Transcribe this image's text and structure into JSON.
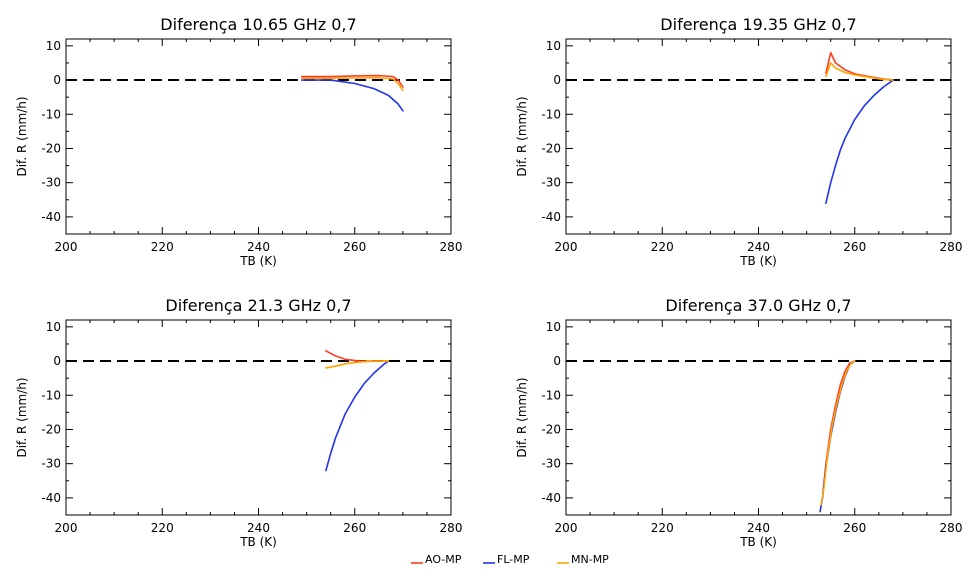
{
  "chart_data": [
    {
      "type": "line",
      "title": "Diferença 10.65 GHz   0,7",
      "xlabel": "TB (K)",
      "ylabel": "Dif. R (mm/h)",
      "xlim": [
        200,
        280
      ],
      "ylim": [
        -45,
        12
      ],
      "xticks": [
        200,
        220,
        240,
        260,
        280
      ],
      "yticks": [
        10,
        0,
        -10,
        -20,
        -30,
        -40
      ],
      "reference_line": {
        "y": 0,
        "style": "dashed"
      },
      "series": [
        {
          "name": "AO-MP",
          "color": "#ff3b1f",
          "x": [
            249,
            255,
            260,
            265,
            268,
            269,
            270
          ],
          "y": [
            1.0,
            1.0,
            1.2,
            1.3,
            1.0,
            0.0,
            -2.0
          ]
        },
        {
          "name": "FL-MP",
          "color": "#2233ee",
          "x": [
            249,
            255,
            260,
            264,
            267,
            269,
            270
          ],
          "y": [
            0.0,
            0.0,
            -1.0,
            -2.5,
            -4.5,
            -7.0,
            -9.0
          ]
        },
        {
          "name": "MN-MP",
          "color": "#ffa500",
          "x": [
            249,
            255,
            260,
            265,
            268,
            269,
            270
          ],
          "y": [
            0.5,
            0.5,
            0.6,
            0.7,
            0.3,
            -1.0,
            -3.0
          ]
        }
      ]
    },
    {
      "type": "line",
      "title": "Diferença 19.35 GHz   0,7",
      "xlabel": "TB (K)",
      "ylabel": "Dif. R (mm/h)",
      "xlim": [
        200,
        280
      ],
      "ylim": [
        -45,
        12
      ],
      "xticks": [
        200,
        220,
        240,
        260,
        280
      ],
      "yticks": [
        10,
        0,
        -10,
        -20,
        -30,
        -40
      ],
      "reference_line": {
        "y": 0,
        "style": "dashed"
      },
      "series": [
        {
          "name": "AO-MP",
          "color": "#ff3b1f",
          "x": [
            254,
            255,
            256,
            258,
            260,
            263,
            266,
            268
          ],
          "y": [
            2.0,
            8.0,
            5.0,
            3.0,
            1.8,
            1.0,
            0.3,
            0.0
          ]
        },
        {
          "name": "FL-MP",
          "color": "#2233ee",
          "x": [
            254,
            255,
            256,
            257,
            258,
            260,
            262,
            264,
            266,
            268
          ],
          "y": [
            -36.0,
            -30.0,
            -25.0,
            -20.5,
            -17.0,
            -11.5,
            -7.5,
            -4.5,
            -2.0,
            0.0
          ]
        },
        {
          "name": "MN-MP",
          "color": "#ffa500",
          "x": [
            254,
            255,
            256,
            258,
            260,
            263,
            266,
            268
          ],
          "y": [
            1.0,
            5.0,
            3.5,
            2.2,
            1.5,
            0.8,
            0.2,
            0.0
          ]
        }
      ]
    },
    {
      "type": "line",
      "title": "Diferença 21.3 GHz   0,7",
      "xlabel": "TB (K)",
      "ylabel": "Dif. R (mm/h)",
      "xlim": [
        200,
        280
      ],
      "ylim": [
        -45,
        12
      ],
      "xticks": [
        200,
        220,
        240,
        260,
        280
      ],
      "yticks": [
        10,
        0,
        -10,
        -20,
        -30,
        -40
      ],
      "reference_line": {
        "y": 0,
        "style": "dashed"
      },
      "series": [
        {
          "name": "AO-MP",
          "color": "#ff3b1f",
          "x": [
            254,
            256,
            258,
            261,
            264,
            267
          ],
          "y": [
            3.0,
            1.5,
            0.5,
            0.0,
            0.0,
            0.0
          ]
        },
        {
          "name": "FL-MP",
          "color": "#2233ee",
          "x": [
            254,
            255,
            256,
            257,
            258,
            260,
            262,
            264,
            266,
            267
          ],
          "y": [
            -32.0,
            -27.0,
            -22.5,
            -19.0,
            -15.5,
            -10.5,
            -6.5,
            -3.5,
            -1.0,
            0.0
          ]
        },
        {
          "name": "MN-MP",
          "color": "#ffa500",
          "x": [
            254,
            256,
            258,
            261,
            264,
            267
          ],
          "y": [
            -2.0,
            -1.5,
            -0.8,
            -0.3,
            0.0,
            0.0
          ]
        }
      ]
    },
    {
      "type": "line",
      "title": "Diferença 37.0 GHz   0,7",
      "xlabel": "TB (K)",
      "ylabel": "Dif. R (mm/h)",
      "xlim": [
        200,
        280
      ],
      "ylim": [
        -45,
        12
      ],
      "xticks": [
        200,
        220,
        240,
        260,
        280
      ],
      "yticks": [
        10,
        0,
        -10,
        -20,
        -30,
        -40
      ],
      "reference_line": {
        "y": 0,
        "style": "dashed"
      },
      "series": [
        {
          "name": "AO-MP",
          "color": "#ff3b1f",
          "x": [
            253.3,
            254,
            255,
            256,
            257,
            258,
            259,
            260
          ],
          "y": [
            -40.0,
            -30.0,
            -20.0,
            -13.0,
            -7.0,
            -3.0,
            -0.5,
            0.0
          ]
        },
        {
          "name": "FL-MP",
          "color": "#2233ee",
          "x": [
            252.8,
            253.3,
            254,
            255,
            256,
            257,
            258,
            259,
            260
          ],
          "y": [
            -44.0,
            -40.0,
            -31.0,
            -22.0,
            -15.0,
            -9.0,
            -4.5,
            -1.0,
            0.0
          ]
        },
        {
          "name": "MN-MP",
          "color": "#ffa500",
          "x": [
            253.0,
            253.6,
            254.3,
            255.3,
            256.3,
            257.3,
            258.3,
            259.3,
            260
          ],
          "y": [
            -42.0,
            -37.0,
            -28.0,
            -19.0,
            -12.5,
            -7.0,
            -3.0,
            -0.5,
            0.0
          ]
        }
      ]
    }
  ],
  "legend": [
    {
      "label": "AO-MP",
      "color": "#ff3b1f"
    },
    {
      "label": "FL-MP",
      "color": "#2233ee"
    },
    {
      "label": "MN-MP",
      "color": "#ffa500"
    }
  ]
}
